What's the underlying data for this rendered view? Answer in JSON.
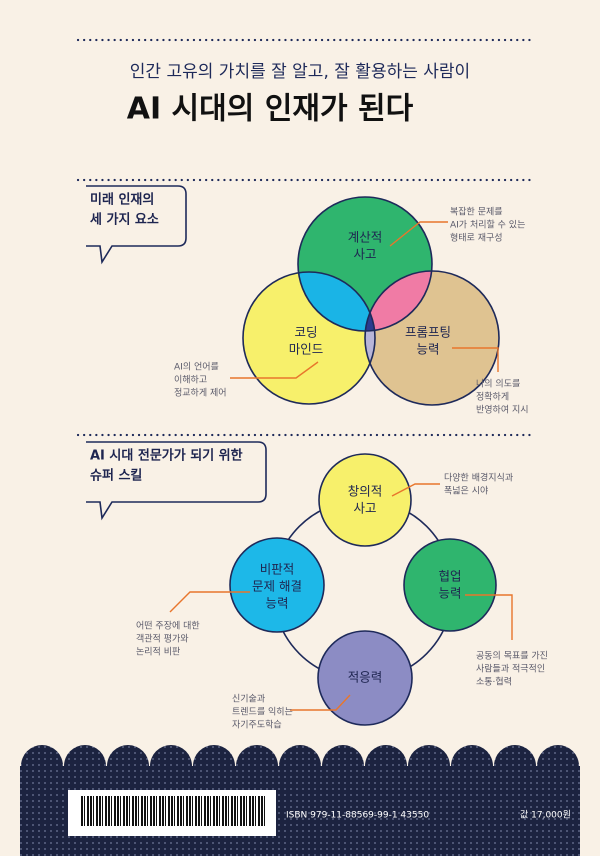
{
  "header": {
    "subtitle": "인간 고유의 가치를 잘 알고, 잘 활용하는 사람이",
    "title": "AI 시대의 인재가 된다"
  },
  "section1": {
    "heading": [
      "미래 인재의",
      "세 가지 요소"
    ],
    "circles": [
      {
        "label": [
          "계산적",
          "사고"
        ],
        "note": [
          "복잡한 문제를",
          "AI가 처리할 수 있는",
          "형태로 재구성"
        ]
      },
      {
        "label": [
          "코딩",
          "마인드"
        ],
        "note": [
          "AI의 언어를",
          "이해하고",
          "정교하게 제어"
        ]
      },
      {
        "label": [
          "프롬프팅",
          "능력"
        ],
        "note": [
          "나의 의도를",
          "정확하게",
          "반영하여 지시"
        ]
      }
    ]
  },
  "section2": {
    "heading": [
      "AI 시대 전문가가 되기 위한",
      "슈퍼 스킬"
    ],
    "nodes": [
      {
        "label": [
          "창의적",
          "사고"
        ],
        "note": [
          "다양한 배경지식과",
          "폭넓은 시야"
        ]
      },
      {
        "label": [
          "비판적",
          "문제 해결",
          "능력"
        ],
        "note": [
          "어떤 주장에 대한",
          "객관적 평가와",
          "논리적 비판"
        ]
      },
      {
        "label": [
          "협업",
          "능력"
        ],
        "note": [
          "공동의 목표를 가진",
          "사람들과 적극적인",
          "소통·협력"
        ]
      },
      {
        "label": [
          "적응력"
        ],
        "note": [
          "신기술과",
          "트렌드를 익히는",
          "자기주도학습"
        ]
      }
    ]
  },
  "footer": {
    "isbn": "ISBN 979-11-88569-99-1 43550",
    "price": "값 17,000원"
  }
}
